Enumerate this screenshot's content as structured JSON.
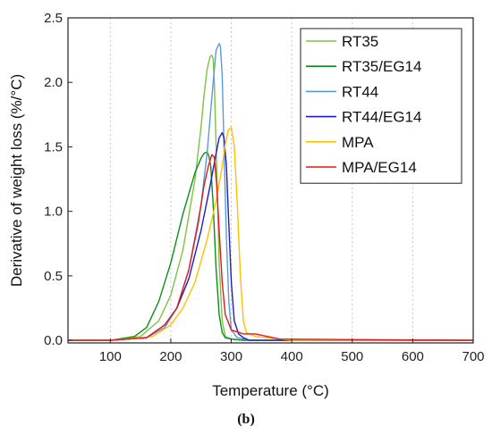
{
  "caption": "(b)",
  "chart_data": {
    "type": "line",
    "xlabel": "Temperature (°C)",
    "ylabel": "Derivative of weight loss (%/°C)",
    "xlim": [
      30,
      700
    ],
    "ylim": [
      -0.02,
      2.5
    ],
    "xticks": [
      100,
      200,
      300,
      400,
      500,
      600,
      700
    ],
    "yticks": [
      0.0,
      0.5,
      1.0,
      1.5,
      2.0,
      2.5
    ],
    "xtick_labels": [
      "100",
      "200",
      "300",
      "400",
      "500",
      "600",
      "700"
    ],
    "ytick_labels": [
      "0.0",
      "0.5",
      "1.0",
      "1.5",
      "2.0",
      "2.5"
    ],
    "grid": "vertical dashed",
    "legend_position": "top-right",
    "series": [
      {
        "name": "RT35",
        "color": "#7fc241",
        "x": [
          30,
          100,
          150,
          180,
          200,
          220,
          240,
          250,
          255,
          260,
          265,
          268,
          270,
          272,
          275,
          280,
          285,
          290,
          300,
          320,
          350,
          700
        ],
        "y": [
          0,
          0,
          0.03,
          0.15,
          0.35,
          0.7,
          1.25,
          1.65,
          1.9,
          2.1,
          2.2,
          2.21,
          2.18,
          2.0,
          1.5,
          0.6,
          0.15,
          0.03,
          0.01,
          0,
          0,
          0
        ]
      },
      {
        "name": "RT35/EG14",
        "color": "#0b8f1a",
        "x": [
          30,
          100,
          140,
          160,
          180,
          200,
          220,
          240,
          250,
          255,
          260,
          263,
          266,
          270,
          275,
          280,
          285,
          290,
          300,
          320,
          700
        ],
        "y": [
          0,
          0,
          0.03,
          0.1,
          0.3,
          0.6,
          0.98,
          1.3,
          1.41,
          1.45,
          1.46,
          1.43,
          1.35,
          1.05,
          0.55,
          0.2,
          0.06,
          0.02,
          0.01,
          0,
          0
        ]
      },
      {
        "name": "RT44",
        "color": "#5b9bd5",
        "x": [
          30,
          100,
          160,
          190,
          210,
          230,
          250,
          260,
          270,
          275,
          280,
          282,
          285,
          288,
          292,
          296,
          300,
          310,
          330,
          700
        ],
        "y": [
          0,
          0,
          0.02,
          0.1,
          0.25,
          0.55,
          1.05,
          1.45,
          2.0,
          2.25,
          2.3,
          2.28,
          2.05,
          1.5,
          0.8,
          0.3,
          0.08,
          0.02,
          0,
          0
        ]
      },
      {
        "name": "RT44/EG14",
        "color": "#1f1fbf",
        "x": [
          30,
          100,
          160,
          190,
          210,
          230,
          250,
          265,
          275,
          280,
          285,
          288,
          292,
          296,
          300,
          305,
          312,
          320,
          330,
          700
        ],
        "y": [
          0,
          0,
          0.02,
          0.12,
          0.25,
          0.48,
          0.85,
          1.2,
          1.45,
          1.57,
          1.61,
          1.57,
          1.35,
          0.9,
          0.45,
          0.15,
          0.05,
          0.02,
          0,
          0
        ]
      },
      {
        "name": "MPA",
        "color": "#ffc000",
        "x": [
          30,
          100,
          170,
          200,
          220,
          240,
          260,
          275,
          285,
          290,
          295,
          300,
          305,
          310,
          315,
          320,
          325,
          340,
          360,
          400,
          700
        ],
        "y": [
          0,
          0,
          0.03,
          0.12,
          0.25,
          0.45,
          0.78,
          1.08,
          1.35,
          1.52,
          1.63,
          1.65,
          1.5,
          1.05,
          0.5,
          0.15,
          0.06,
          0.03,
          0.02,
          0,
          0
        ]
      },
      {
        "name": "MPA/EG14",
        "color": "#e31a1c",
        "x": [
          30,
          100,
          160,
          190,
          210,
          230,
          245,
          255,
          262,
          268,
          272,
          276,
          280,
          285,
          290,
          300,
          320,
          340,
          360,
          380,
          700
        ],
        "y": [
          0,
          0,
          0.02,
          0.12,
          0.25,
          0.55,
          0.9,
          1.2,
          1.35,
          1.44,
          1.42,
          1.2,
          0.85,
          0.45,
          0.2,
          0.08,
          0.05,
          0.05,
          0.03,
          0.01,
          0
        ]
      }
    ]
  }
}
